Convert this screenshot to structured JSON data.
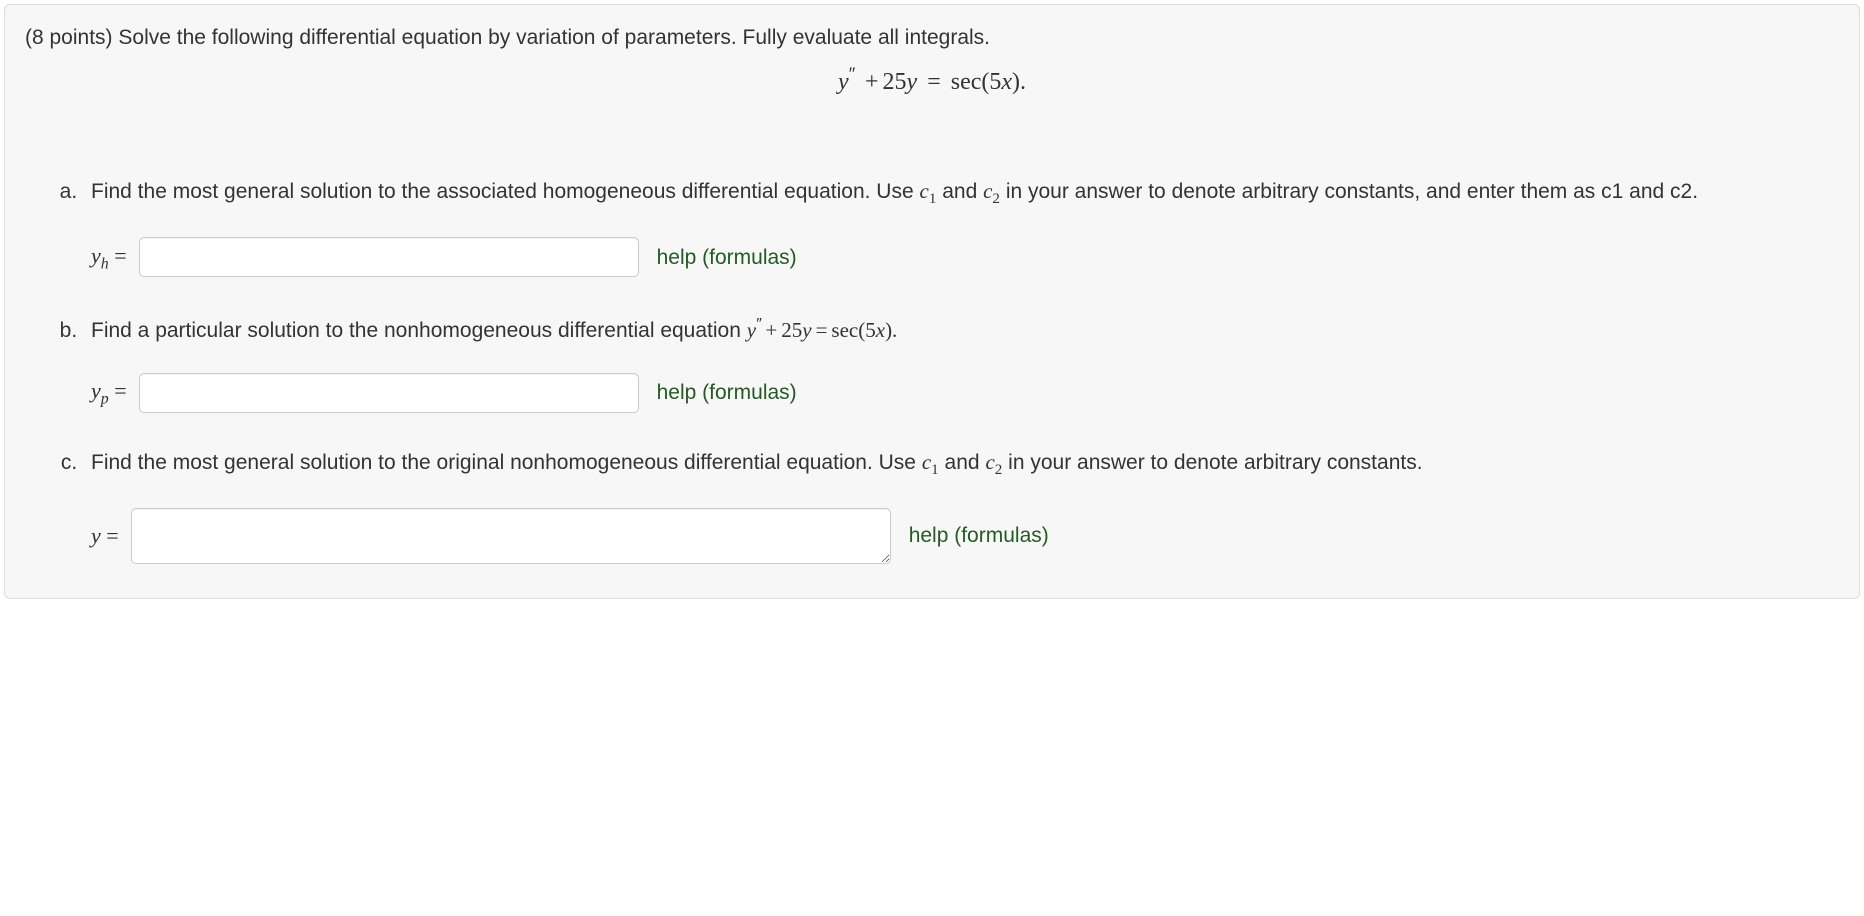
{
  "points_prefix": "(8 points)",
  "prompt_text": "Solve the following differential equation by variation of parameters. Fully evaluate all integrals.",
  "equation_html": "y″ + 25y = sec(5x).",
  "help_label": "help (formulas)",
  "parts": {
    "a": {
      "text_before": "Find the most general solution to the associated homogeneous differential equation. Use ",
      "c1": "c",
      "c1_sub": "1",
      "and": " and ",
      "c2": "c",
      "c2_sub": "2",
      "text_after": " in your answer to denote arbitrary constants, and enter them as c1 and c2.",
      "label_var": "y",
      "label_sub": "h",
      "label_eq": " ="
    },
    "b": {
      "text_before": "Find a particular solution to the nonhomogeneous differential equation ",
      "eq_inline": "y″ + 25y = sec(5x).",
      "label_var": "y",
      "label_sub": "p",
      "label_eq": " ="
    },
    "c": {
      "text_before": "Find the most general solution to the original nonhomogeneous differential equation. Use ",
      "c1": "c",
      "c1_sub": "1",
      "and": " and ",
      "c2": "c",
      "c2_sub": "2",
      "text_after": " in your answer to denote arbitrary constants.",
      "label_var": "y",
      "label_eq": " ="
    }
  },
  "colors": {
    "box_bg": "#f7f7f7",
    "box_border": "#dddddd",
    "text": "#333333",
    "link": "#255a25",
    "input_border": "#cccccc"
  }
}
